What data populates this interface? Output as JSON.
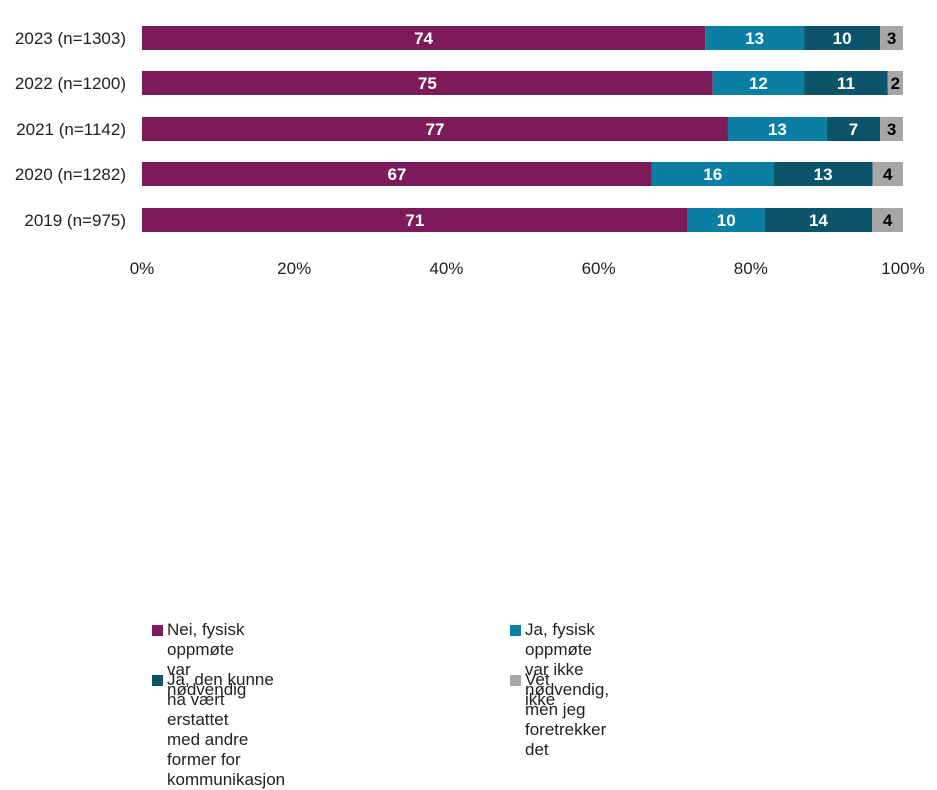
{
  "chart_data": {
    "type": "bar",
    "orientation": "horizontal",
    "stacked": true,
    "categories": [
      "2023 (n=1303)",
      "2022 (n=1200)",
      "2021 (n=1142)",
      "2020 (n=1282)",
      "2019 (n=975)"
    ],
    "series": [
      {
        "name": "Nei, fysisk oppmøte var nødvendig",
        "color": "#7D1A5A",
        "label_color": "#ffffff",
        "values": [
          74,
          75,
          77,
          67,
          71
        ]
      },
      {
        "name": "Ja, fysisk oppmøte var ikke nødvendig, men jeg foretrekker det",
        "color": "#0A7FA3",
        "label_color": "#ffffff",
        "values": [
          13,
          12,
          13,
          16,
          10
        ]
      },
      {
        "name": "Ja, den kunne ha vært erstattet med andre former for kommunikasjon",
        "color": "#0B5469",
        "label_color": "#ffffff",
        "values": [
          10,
          11,
          7,
          13,
          14
        ]
      },
      {
        "name": "Vet ikke",
        "color": "#A6A6A6",
        "label_color": "#000000",
        "values": [
          3,
          2,
          3,
          4,
          4
        ]
      }
    ],
    "xlim": [
      0,
      100
    ],
    "x_ticks": [
      "0%",
      "20%",
      "40%",
      "60%",
      "80%",
      "100%"
    ],
    "grid": false,
    "legend_position": "bottom"
  },
  "legend": {
    "items": [
      [
        "Nei, fysisk oppmøte var nødvendig"
      ],
      [
        "Ja, fysisk oppmøte var ikke",
        "nødvendig, men jeg foretrekker det"
      ],
      [
        "Ja, den kunne ha vært erstattet",
        "med andre former for kommunikasjon"
      ],
      [
        "Vet ikke"
      ]
    ]
  }
}
